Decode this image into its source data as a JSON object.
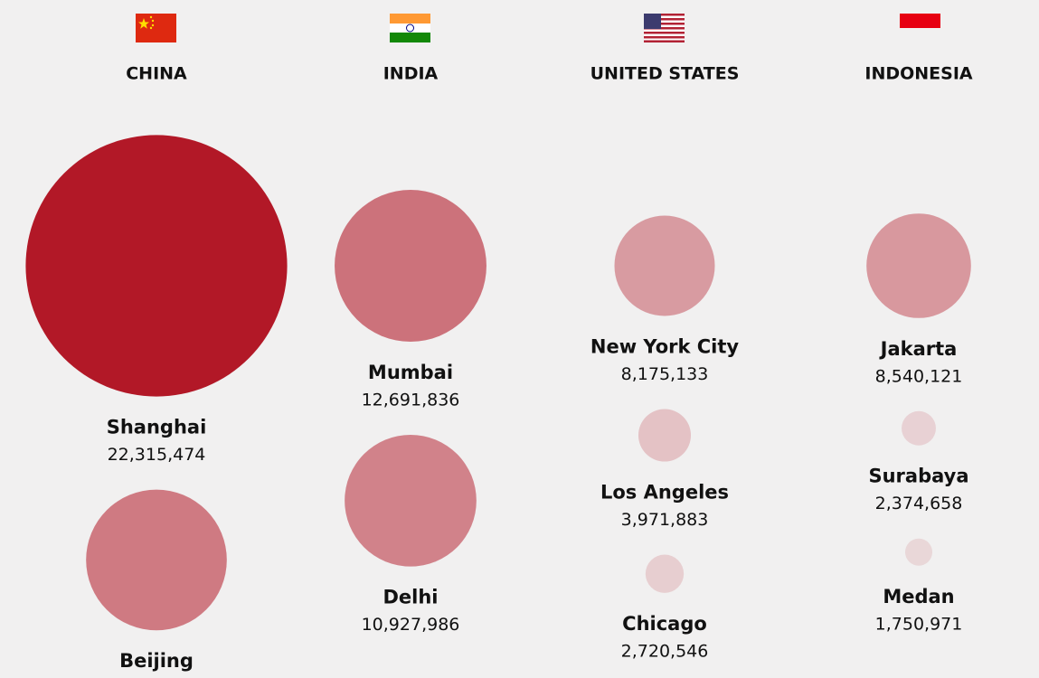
{
  "countries": [
    {
      "name": "CHINA",
      "cities": [
        {
          "name": "Shanghai",
          "population": 22315474,
          "population_label": "22,315,474"
        },
        {
          "name": "Beijing",
          "population": 11716620
        }
      ]
    },
    {
      "name": "INDIA",
      "cities": [
        {
          "name": "Mumbai",
          "population": 12691836,
          "population_label": "12,691,836"
        },
        {
          "name": "Delhi",
          "population": 10927986,
          "population_label": "10,927,986"
        }
      ]
    },
    {
      "name": "UNITED STATES",
      "cities": [
        {
          "name": "New York City",
          "population": 8175133,
          "population_label": "8,175,133"
        },
        {
          "name": "Los Angeles",
          "population": 3971883,
          "population_label": "3,971,883"
        },
        {
          "name": "Chicago",
          "population": 2720546,
          "population_label": "2,720,546"
        }
      ]
    },
    {
      "name": "INDONESIA",
      "cities": [
        {
          "name": "Jakarta",
          "population": 8540121,
          "population_label": "8,540,121"
        },
        {
          "name": "Surabaya",
          "population": 2374658,
          "population_label": "2,374,658"
        },
        {
          "name": "Medan",
          "population": 1750971,
          "population_label": "1,750,971"
        }
      ]
    }
  ]
}
